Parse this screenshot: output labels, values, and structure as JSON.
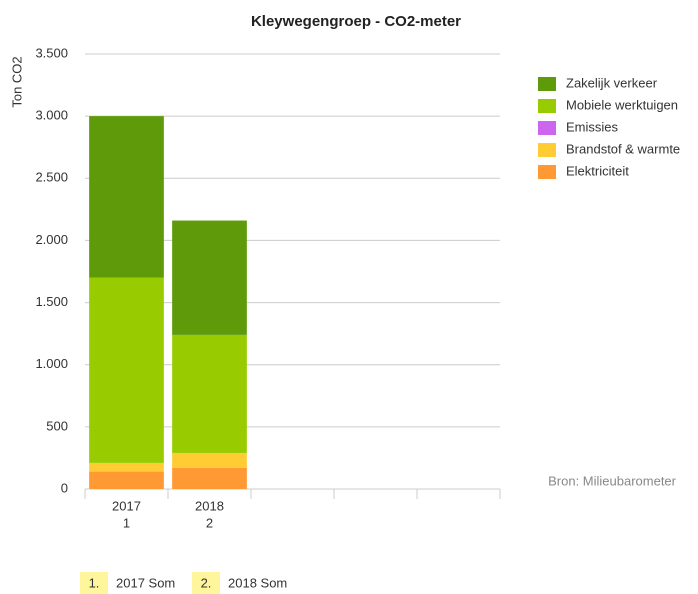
{
  "chart_data": {
    "type": "stacked_bar",
    "title": "Kleywegengroep - CO2-meter",
    "y_label": "Ton CO2",
    "categories": [
      "2017",
      "2018",
      null,
      null,
      null
    ],
    "sub_labels": [
      "1",
      "2",
      null,
      null,
      null
    ],
    "series": [
      {
        "name": "Zakelijk verkeer",
        "color": "#5f9a0b",
        "values": [
          1300,
          920,
          null,
          null,
          null
        ]
      },
      {
        "name": "Mobiele werktuigen",
        "color": "#99cc00",
        "values": [
          1490,
          950,
          null,
          null,
          null
        ]
      },
      {
        "name": "Emissies",
        "color": "#cc66ee",
        "values": [
          0,
          0,
          null,
          null,
          null
        ]
      },
      {
        "name": "Brandstof & warmte",
        "color": "#ffcc33",
        "values": [
          70,
          120,
          null,
          null,
          null
        ]
      },
      {
        "name": "Elektriciteit",
        "color": "#ff9933",
        "values": [
          140,
          170,
          null,
          null,
          null
        ]
      }
    ],
    "ylim": [
      0,
      3500
    ],
    "yticks": [
      0,
      {
        "value": 500,
        "label": "500"
      },
      {
        "value": 1000,
        "label": "1.000"
      },
      {
        "value": 1500,
        "label": "1.500"
      },
      {
        "value": 2000,
        "label": "2.000"
      },
      {
        "value": 2500,
        "label": "2.500"
      },
      {
        "value": 3000,
        "label": "3.000"
      },
      {
        "value": 3500,
        "label": "3.500"
      }
    ],
    "grid": true,
    "legend": "right",
    "source": "Bron: Milieubarometer",
    "footer_items": [
      {
        "number": "1.",
        "label": "2017 Som"
      },
      {
        "number": "2.",
        "label": "2018 Som"
      }
    ]
  }
}
